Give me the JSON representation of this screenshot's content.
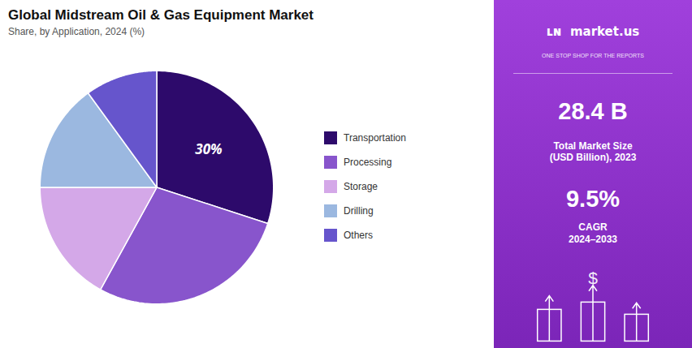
{
  "chart_data": {
    "type": "pie",
    "title": "Global Midstream Oil & Gas Equipment Market",
    "subtitle": "Share, by Application, 2024 (%)",
    "categories": [
      "Transportation",
      "Processing",
      "Storage",
      "Drilling",
      "Others"
    ],
    "values": [
      30,
      28,
      17,
      15,
      10
    ],
    "value_labels": [
      "30%",
      null,
      null,
      null,
      null
    ],
    "colors": [
      "#2d0a6b",
      "#8855cc",
      "#d4a8e8",
      "#9bb8e0",
      "#6655cc"
    ],
    "legend": "right",
    "annotations": [
      "ʟɴ  market.us",
      "ONE STOP SHOP FOR THE REPORTS",
      "28.4 B",
      "Total Market Size\n(USD Billion), 2023",
      "9.5%",
      "CAGR\n2024–2033",
      "$"
    ]
  }
}
